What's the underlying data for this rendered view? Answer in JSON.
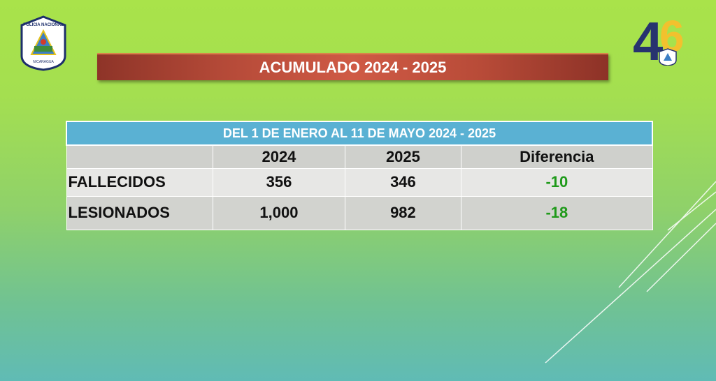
{
  "banner": {
    "title": "ACUMULADO 2024 - 2025"
  },
  "logos": {
    "left": "POLICIA NACIONAL NICARAGUA",
    "right": "46"
  },
  "table": {
    "title": "DEL 1 DE ENERO AL 11 DE MAYO 2024 - 2025",
    "headers": [
      "",
      "2024",
      "2025",
      "Diferencia"
    ],
    "rows": [
      {
        "label": "FALLECIDOS",
        "y2024": "356",
        "y2025": "346",
        "diff": "-10"
      },
      {
        "label": "LESIONADOS",
        "y2024": "1,000",
        "y2025": "982",
        "diff": "-18"
      }
    ]
  },
  "colors": {
    "banner": "#b54a38",
    "table_title": "#5ab1d3",
    "negative": "#1f9a1a"
  }
}
